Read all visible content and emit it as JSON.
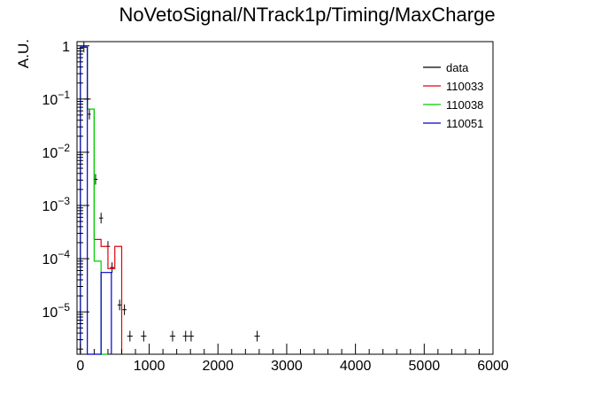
{
  "chart_data": {
    "type": "line",
    "title": "NoVetoSignal/NTrack1p/Timing/MaxCharge",
    "xlabel": "",
    "ylabel": "A.U.",
    "xlim": [
      -50,
      6000
    ],
    "ylim": [
      1.6e-06,
      1.2
    ],
    "yscale": "log",
    "grid": false,
    "legend_position": "top-right",
    "x_ticks": [
      {
        "value": 0,
        "label": "0"
      },
      {
        "value": 1000,
        "label": "1000"
      },
      {
        "value": 2000,
        "label": "2000"
      },
      {
        "value": 3000,
        "label": "3000"
      },
      {
        "value": 4000,
        "label": "4000"
      },
      {
        "value": 5000,
        "label": "5000"
      },
      {
        "value": 6000,
        "label": "6000"
      }
    ],
    "y_ticks": [
      {
        "value": 1,
        "base": "1",
        "exp": ""
      },
      {
        "value": 0.1,
        "base": "10",
        "exp": "−1"
      },
      {
        "value": 0.01,
        "base": "10",
        "exp": "−2"
      },
      {
        "value": 0.001,
        "base": "10",
        "exp": "−3"
      },
      {
        "value": 0.0001,
        "base": "10",
        "exp": "−4"
      },
      {
        "value": 1e-05,
        "base": "10",
        "exp": "−5"
      }
    ],
    "series": [
      {
        "name": "data",
        "color": "#000000",
        "kind": "points",
        "points": [
          {
            "x": 50,
            "y": 0.95,
            "xerr": 50
          },
          {
            "x": 100,
            "y": 0.1,
            "xerr": 50
          },
          {
            "x": 130,
            "y": 0.052,
            "xerr": 20
          },
          {
            "x": 220,
            "y": 0.0031,
            "xerr": 30
          },
          {
            "x": 300,
            "y": 0.00058,
            "xerr": 30
          },
          {
            "x": 400,
            "y": 0.00017,
            "xerr": 30
          },
          {
            "x": 460,
            "y": 6.8e-05,
            "xerr": 30
          },
          {
            "x": 570,
            "y": 1.35e-05,
            "xerr": 30
          },
          {
            "x": 640,
            "y": 1.1e-05,
            "xerr": 30
          },
          {
            "x": 720,
            "y": 3.5e-06,
            "xerr": 40
          },
          {
            "x": 920,
            "y": 3.5e-06,
            "xerr": 40
          },
          {
            "x": 1340,
            "y": 3.5e-06,
            "xerr": 40
          },
          {
            "x": 1530,
            "y": 3.5e-06,
            "xerr": 40
          },
          {
            "x": 1610,
            "y": 3.5e-06,
            "xerr": 40
          },
          {
            "x": 2570,
            "y": 3.5e-06,
            "xerr": 40
          }
        ]
      },
      {
        "name": "110033",
        "color": "#e8000b",
        "kind": "step",
        "edges": [
          0,
          100,
          200,
          300,
          400,
          500,
          600
        ],
        "values": [
          0.95,
          0.065,
          0.00023,
          0.00017,
          6.5e-05,
          0.00017,
          1e-08
        ]
      },
      {
        "name": "110038",
        "color": "#00cc00",
        "kind": "step",
        "edges": [
          0,
          100,
          200,
          300,
          400
        ],
        "values": [
          0.95,
          0.065,
          9e-05,
          1.2e-06
        ]
      },
      {
        "name": "110051",
        "color": "#0000c8",
        "kind": "step",
        "edges": [
          0,
          100,
          150,
          300,
          450
        ],
        "values": [
          0.95,
          1.2e-06,
          1.2e-06,
          5.5e-05
        ]
      }
    ]
  }
}
